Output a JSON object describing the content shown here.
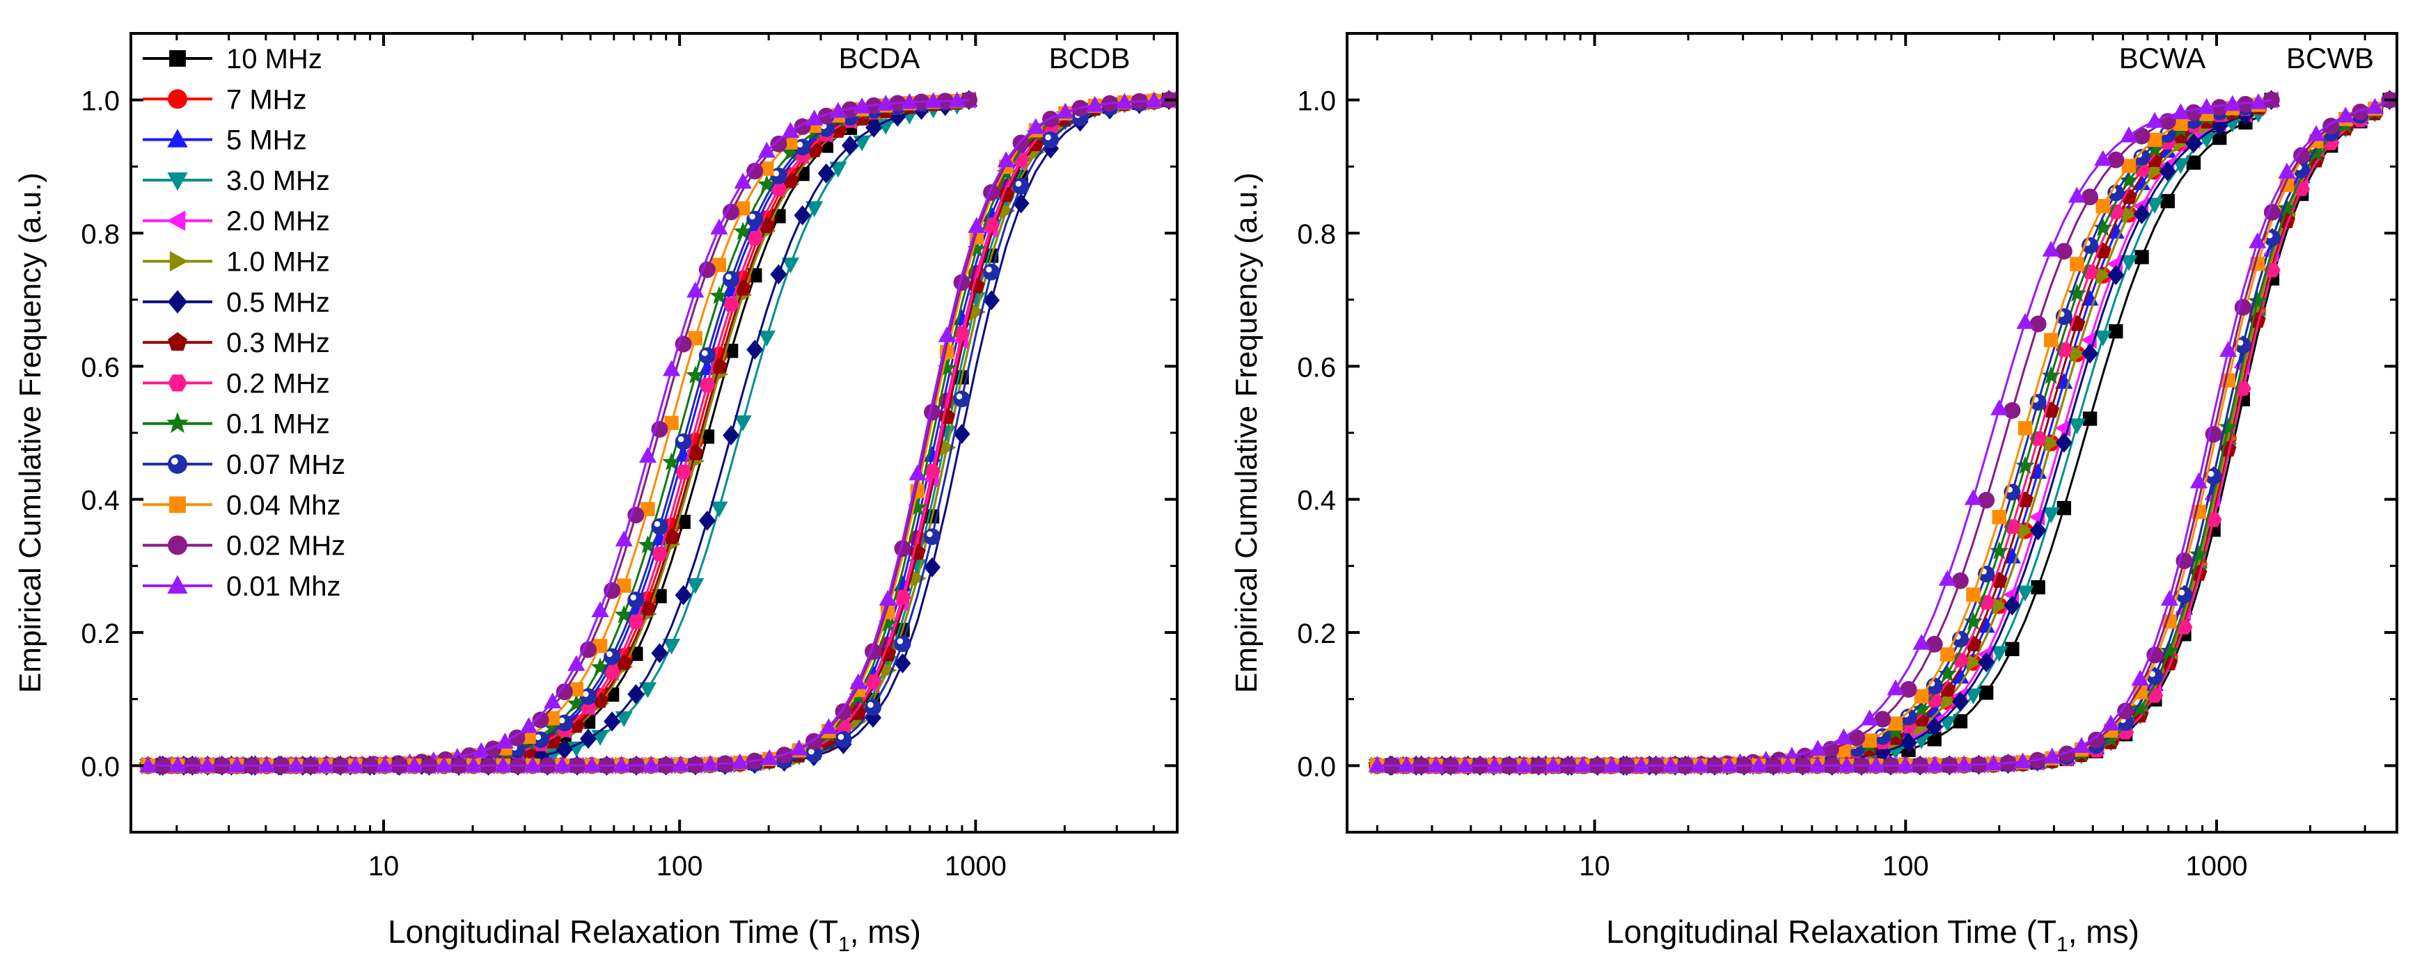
{
  "chart_data": [
    {
      "type": "line",
      "panel": "left",
      "xlabel_main": "Longitudinal Relaxation Time (T",
      "xlabel_sub": "1",
      "xlabel_tail": ", ms)",
      "ylabel": "Empirical Cumulative Frequency (a.u.)",
      "x_scale": "log",
      "xlim": [
        1.4,
        4800
      ],
      "ylim": [
        -0.1,
        1.1
      ],
      "x_ticks": [
        10,
        100,
        1000
      ],
      "x_tick_labels": [
        "10",
        "100",
        "1000"
      ],
      "y_ticks": [
        0.0,
        0.2,
        0.4,
        0.6,
        0.8,
        1.0
      ],
      "y_tick_labels": [
        "0.0",
        "0.2",
        "0.4",
        "0.6",
        "0.8",
        "1.0"
      ],
      "grid": false,
      "legend_position": "top-left",
      "annotations": [
        {
          "text": "BCDA",
          "x": 320,
          "y": 1.055
        },
        {
          "text": "BCDB",
          "x": 1400,
          "y": 1.055
        }
      ],
      "groups": [
        {
          "label": "BCDA",
          "xmin": 1.6,
          "xmax": 950,
          "medians": [
            125,
            115,
            108,
            160,
            112,
            120,
            150,
            118,
            112,
            100,
            105,
            92,
            85,
            82
          ]
        },
        {
          "label": "BCDB",
          "xmin": 1.6,
          "xmax": 4500,
          "medians": [
            820,
            760,
            740,
            800,
            770,
            820,
            900,
            780,
            760,
            720,
            850,
            700,
            690,
            680
          ]
        }
      ]
    },
    {
      "type": "line",
      "panel": "right",
      "xlabel_main": "Longitudinal Relaxation Time (T",
      "xlabel_sub": "1",
      "xlabel_tail": ", ms)",
      "ylabel": "Empirical Cumulative Frequency (a.u.)",
      "x_scale": "log",
      "xlim": [
        1.6,
        3800
      ],
      "ylim": [
        -0.1,
        1.1
      ],
      "x_ticks": [
        10,
        100,
        1000
      ],
      "x_tick_labels": [
        "10",
        "100",
        "1000"
      ],
      "y_ticks": [
        0.0,
        0.2,
        0.4,
        0.6,
        0.8,
        1.0
      ],
      "y_tick_labels": [
        "0.0",
        "0.2",
        "0.4",
        "0.6",
        "0.8",
        "1.0"
      ],
      "grid": false,
      "annotations": [
        {
          "text": "BCWA",
          "x": 500,
          "y": 1.055
        },
        {
          "text": "BCWB",
          "x": 2400,
          "y": 1.055
        }
      ],
      "groups": [
        {
          "label": "BCWA",
          "xmin": 2.0,
          "xmax": 1500,
          "medians": [
            380,
            300,
            290,
            350,
            320,
            300,
            330,
            280,
            270,
            260,
            250,
            240,
            210,
            190
          ]
        },
        {
          "label": "BCWB",
          "xmin": 2.0,
          "xmax": 3600,
          "medians": [
            1150,
            1100,
            1080,
            1120,
            1090,
            1100,
            1050,
            1120,
            1130,
            1080,
            1050,
            1000,
            980,
            950
          ]
        }
      ]
    }
  ],
  "legend": [
    {
      "name": "10 MHz",
      "color": "#000000",
      "marker": "square"
    },
    {
      "name": "7 MHz",
      "color": "#ff0000",
      "marker": "circle"
    },
    {
      "name": "5 MHz",
      "color": "#1a1aff",
      "marker": "triangle-up"
    },
    {
      "name": "3.0 MHz",
      "color": "#009090",
      "marker": "triangle-down"
    },
    {
      "name": "2.0 MHz",
      "color": "#ff19ff",
      "marker": "triangle-left"
    },
    {
      "name": "1.0 MHz",
      "color": "#8c8c00",
      "marker": "triangle-right"
    },
    {
      "name": "0.5 MHz",
      "color": "#0a0a80",
      "marker": "diamond"
    },
    {
      "name": "0.3 MHz",
      "color": "#990000",
      "marker": "pentagon"
    },
    {
      "name": "0.2 MHz",
      "color": "#ff1a8c",
      "marker": "hexagon"
    },
    {
      "name": "0.1 MHz",
      "color": "#117a11",
      "marker": "star"
    },
    {
      "name": "0.07 MHz",
      "color": "#1f2ea8",
      "marker": "circle-dot"
    },
    {
      "name": "0.04 Mhz",
      "color": "#ff8c00",
      "marker": "square"
    },
    {
      "name": "0.02 MHz",
      "color": "#8a1a8a",
      "marker": "circle"
    },
    {
      "name": "0.01 Mhz",
      "color": "#9a1aff",
      "marker": "triangle-up"
    }
  ]
}
